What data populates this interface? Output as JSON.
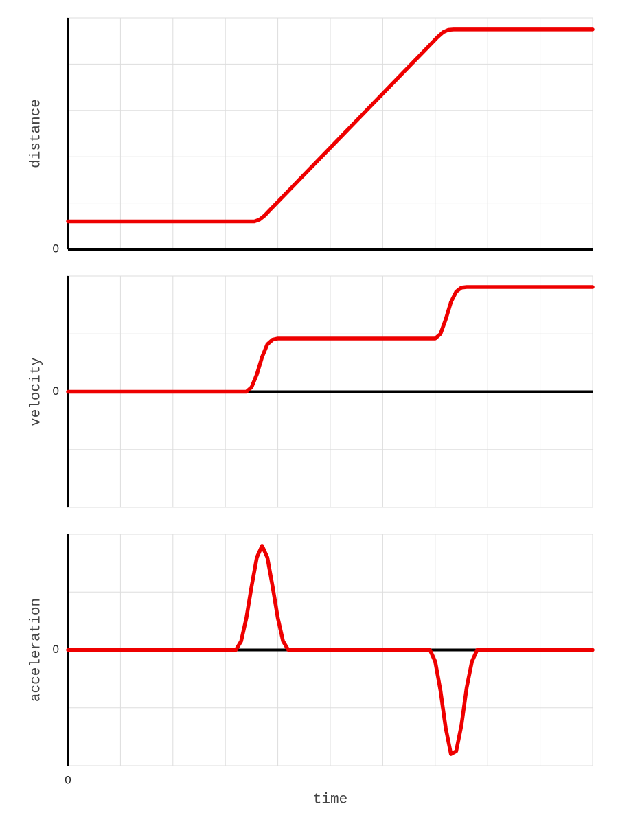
{
  "chart_data": [
    {
      "type": "line",
      "ylabel": "distance",
      "x": [
        0,
        3.55,
        3.65,
        3.75,
        3.85,
        7.05,
        7.15,
        7.25,
        7.35,
        10
      ],
      "series": [
        {
          "color": "#ee0000",
          "values": [
            0.6,
            0.6,
            0.64,
            0.73,
            0.85,
            4.59,
            4.69,
            4.74,
            4.75,
            4.75
          ]
        }
      ],
      "xlim": [
        0,
        10
      ],
      "ylim": [
        0,
        5
      ],
      "xticks": [
        {
          "value": 0,
          "label": null
        },
        {
          "value": 1,
          "label": null
        },
        {
          "value": 2,
          "label": null
        },
        {
          "value": 3,
          "label": null
        },
        {
          "value": 4,
          "label": null
        },
        {
          "value": 5,
          "label": null
        },
        {
          "value": 6,
          "label": null
        },
        {
          "value": 7,
          "label": null
        },
        {
          "value": 8,
          "label": null
        },
        {
          "value": 9,
          "label": null
        },
        {
          "value": 10,
          "label": null
        }
      ],
      "yticks": [
        0,
        {
          "value": 1,
          "label": null
        },
        {
          "value": 2,
          "label": null
        },
        {
          "value": 3,
          "label": null
        },
        {
          "value": 4,
          "label": null
        },
        {
          "value": 5,
          "label": null
        }
      ],
      "grid": true
    },
    {
      "type": "line",
      "ylabel": "velocity",
      "x": [
        0,
        3.4,
        3.5,
        3.6,
        3.7,
        3.8,
        3.9,
        4.0,
        7.0,
        7.1,
        7.2,
        7.3,
        7.4,
        7.5,
        7.6,
        10
      ],
      "series": [
        {
          "color": "#ee0000",
          "values": [
            0,
            0,
            0.08,
            0.3,
            0.6,
            0.82,
            0.9,
            0.92,
            0.92,
            1.0,
            1.25,
            1.55,
            1.73,
            1.8,
            1.81,
            1.81
          ]
        }
      ],
      "xlim": [
        0,
        10
      ],
      "ylim": [
        -2,
        2
      ],
      "xticks": [
        {
          "value": 0,
          "label": null
        },
        {
          "value": 1,
          "label": null
        },
        {
          "value": 2,
          "label": null
        },
        {
          "value": 3,
          "label": null
        },
        {
          "value": 4,
          "label": null
        },
        {
          "value": 5,
          "label": null
        },
        {
          "value": 6,
          "label": null
        },
        {
          "value": 7,
          "label": null
        },
        {
          "value": 8,
          "label": null
        },
        {
          "value": 9,
          "label": null
        },
        {
          "value": 10,
          "label": null
        }
      ],
      "yticks": [
        {
          "value": -2,
          "label": null
        },
        {
          "value": -1,
          "label": null
        },
        0,
        {
          "value": 1,
          "label": null
        },
        {
          "value": 2,
          "label": null
        }
      ],
      "grid": true
    },
    {
      "type": "line",
      "ylabel": "acceleration",
      "xlabel": "time",
      "x": [
        0,
        3.2,
        3.3,
        3.4,
        3.5,
        3.6,
        3.7,
        3.8,
        3.9,
        4.0,
        4.1,
        4.2,
        6.9,
        7.0,
        7.1,
        7.2,
        7.3,
        7.4,
        7.5,
        7.6,
        7.7,
        7.8,
        10
      ],
      "series": [
        {
          "color": "#ee0000",
          "values": [
            0,
            0,
            0.15,
            0.55,
            1.1,
            1.6,
            1.8,
            1.6,
            1.1,
            0.55,
            0.15,
            0,
            0,
            -0.2,
            -0.7,
            -1.35,
            -1.8,
            -1.75,
            -1.3,
            -0.65,
            -0.2,
            0,
            0
          ]
        }
      ],
      "xlim": [
        0,
        10
      ],
      "ylim": [
        -2,
        2
      ],
      "xticks": [
        0,
        {
          "value": 1,
          "label": null
        },
        {
          "value": 2,
          "label": null
        },
        {
          "value": 3,
          "label": null
        },
        {
          "value": 4,
          "label": null
        },
        {
          "value": 5,
          "label": null
        },
        {
          "value": 6,
          "label": null
        },
        {
          "value": 7,
          "label": null
        },
        {
          "value": 8,
          "label": null
        },
        {
          "value": 9,
          "label": null
        },
        {
          "value": 10,
          "label": null
        }
      ],
      "yticks": [
        {
          "value": -2,
          "label": null
        },
        {
          "value": -1,
          "label": null
        },
        0,
        {
          "value": 1,
          "label": null
        },
        {
          "value": 2,
          "label": null
        }
      ],
      "grid": true
    }
  ]
}
